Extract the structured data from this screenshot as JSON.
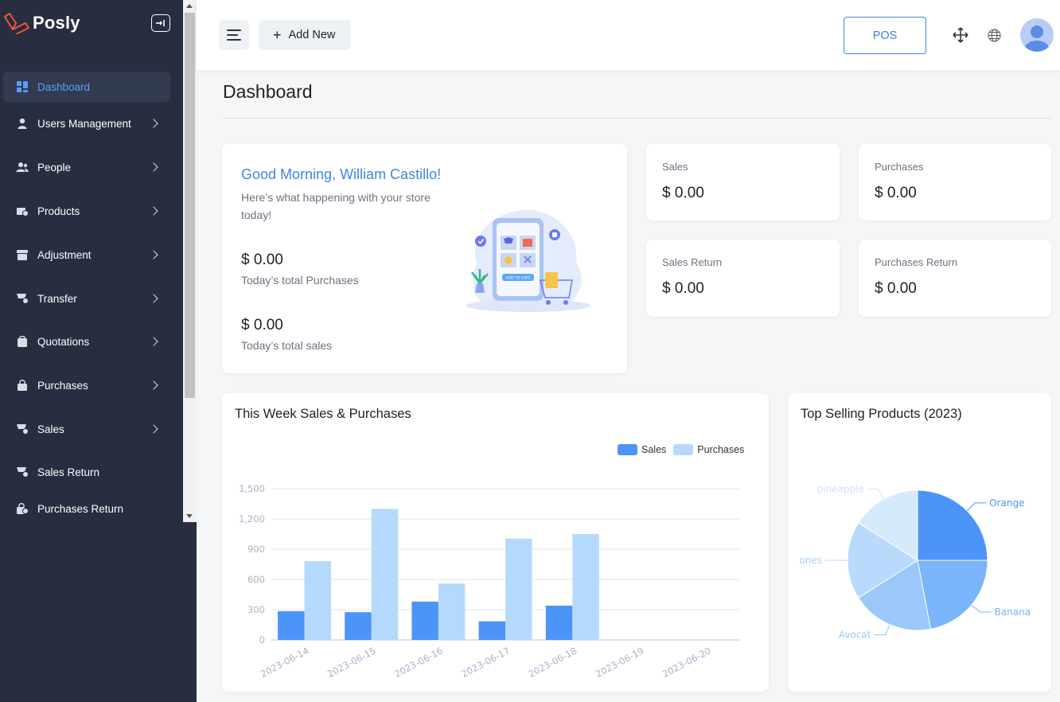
{
  "brand": {
    "name": "Posly"
  },
  "sidebar": {
    "items": [
      {
        "label": "Dashboard",
        "icon": "dashboard-icon",
        "active": true,
        "has_submenu": false
      },
      {
        "label": "Users Management",
        "icon": "user-icon",
        "active": false,
        "has_submenu": true
      },
      {
        "label": "People",
        "icon": "people-icon",
        "active": false,
        "has_submenu": true
      },
      {
        "label": "Products",
        "icon": "products-icon",
        "active": false,
        "has_submenu": true
      },
      {
        "label": "Adjustment",
        "icon": "adjustment-icon",
        "active": false,
        "has_submenu": true
      },
      {
        "label": "Transfer",
        "icon": "transfer-icon",
        "active": false,
        "has_submenu": true
      },
      {
        "label": "Quotations",
        "icon": "quotations-icon",
        "active": false,
        "has_submenu": true
      },
      {
        "label": "Purchases",
        "icon": "purchases-icon",
        "active": false,
        "has_submenu": true
      },
      {
        "label": "Sales",
        "icon": "sales-icon",
        "active": false,
        "has_submenu": true
      },
      {
        "label": "Sales Return",
        "icon": "sales-return-icon",
        "active": false,
        "has_submenu": false
      },
      {
        "label": "Purchases Return",
        "icon": "purchases-return-icon",
        "active": false,
        "has_submenu": false
      }
    ]
  },
  "header": {
    "add_new_label": "Add New",
    "pos_label": "POS"
  },
  "page": {
    "title": "Dashboard"
  },
  "welcome": {
    "greeting": "Good Morning, William Castillo!",
    "subtext": "Here’s what happening with your store today!",
    "purchases_amount": "$ 0.00",
    "purchases_label": "Today’s total Purchases",
    "sales_amount": "$ 0.00",
    "sales_label": "Today’s total sales",
    "illustration_button": "ADD TO CART"
  },
  "stats": [
    {
      "label": "Sales",
      "value": "$ 0.00"
    },
    {
      "label": "Purchases",
      "value": "$ 0.00"
    },
    {
      "label": "Sales Return",
      "value": "$ 0.00"
    },
    {
      "label": "Purchases Return",
      "value": "$ 0.00"
    }
  ],
  "colors": {
    "sidebar_bg": "#272e3f",
    "accent": "#3d86e3",
    "sales_series": "#4d94f8",
    "purchases_series": "#b5d9fd"
  },
  "chart_data": [
    {
      "type": "bar",
      "title": "This Week Sales & Purchases",
      "categories": [
        "2023-06-14",
        "2023-06-15",
        "2023-06-16",
        "2023-06-17",
        "2023-06-18",
        "2023-06-19",
        "2023-06-20"
      ],
      "series": [
        {
          "name": "Sales",
          "color": "#4d94f8",
          "values": [
            285,
            275,
            380,
            185,
            340,
            0,
            0
          ]
        },
        {
          "name": "Purchases",
          "color": "#b5d9fd",
          "values": [
            780,
            1300,
            560,
            1005,
            1050,
            0,
            0
          ]
        }
      ],
      "yticks": [
        "0",
        "300",
        "600",
        "900",
        "1,200",
        "1,500"
      ],
      "ylim": [
        0,
        1500
      ],
      "grid": true,
      "legend": "top-right"
    },
    {
      "type": "pie",
      "title": "Top Selling Products (2023)",
      "slices": [
        {
          "label": "Orange",
          "value": 25,
          "color": "#4d94f8"
        },
        {
          "label": "Banana",
          "value": 22,
          "color": "#7ab4fa"
        },
        {
          "label": "Avocat",
          "value": 19,
          "color": "#9ac8fb"
        },
        {
          "label": "ones",
          "value": 18,
          "color": "#b9dafd"
        },
        {
          "label": "pineapple",
          "value": 16,
          "color": "#d6eafe"
        }
      ]
    }
  ]
}
